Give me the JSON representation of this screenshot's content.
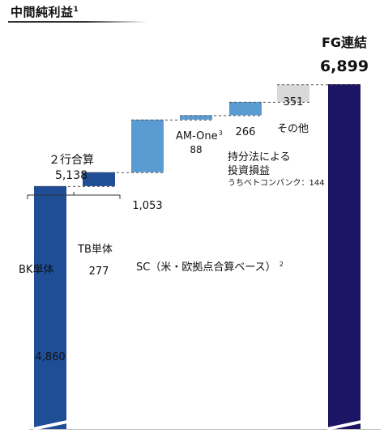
{
  "header": {
    "title": "中間純利益",
    "title_note": "1"
  },
  "colors": {
    "dark_blue": "#1f4e96",
    "mid_blue": "#5a9bd2",
    "gray": "#d9d9d9",
    "navy": "#1c1464"
  },
  "chart_data": {
    "type": "bar",
    "subtype": "waterfall",
    "unit": "",
    "ylim": [
      0,
      6899
    ],
    "steps": [
      {
        "label": "BK単体",
        "value": 4860,
        "value_label": "4,860",
        "kind": "base",
        "color": "#1f4e96"
      },
      {
        "label": "TB単体",
        "value": 277,
        "value_label": "277",
        "kind": "increment",
        "color": "#1f4e96"
      },
      {
        "label": "SC（米・欧拠点合算ベース）",
        "label_note": "2",
        "value": 1053,
        "value_label": "1,053",
        "kind": "increment",
        "color": "#5a9bd2"
      },
      {
        "label": "AM-One",
        "label_note": "3",
        "value": 88,
        "value_label": "88",
        "kind": "increment",
        "color": "#5a9bd2"
      },
      {
        "label": "持分法による\n投資損益",
        "sublabel": "うちベトコンバンク：144",
        "value": 266,
        "value_label": "266",
        "kind": "increment",
        "color": "#5a9bd2"
      },
      {
        "label": "その他",
        "value": 351,
        "value_label": "351",
        "kind": "increment",
        "color": "#d9d9d9"
      },
      {
        "label": "FG連結",
        "value": 6899,
        "value_label": "6,899",
        "kind": "total",
        "color": "#1c1464"
      }
    ],
    "bracket": {
      "label": "２行合算",
      "value_label": "5,138",
      "spans": [
        "BK単体",
        "TB単体"
      ]
    }
  }
}
